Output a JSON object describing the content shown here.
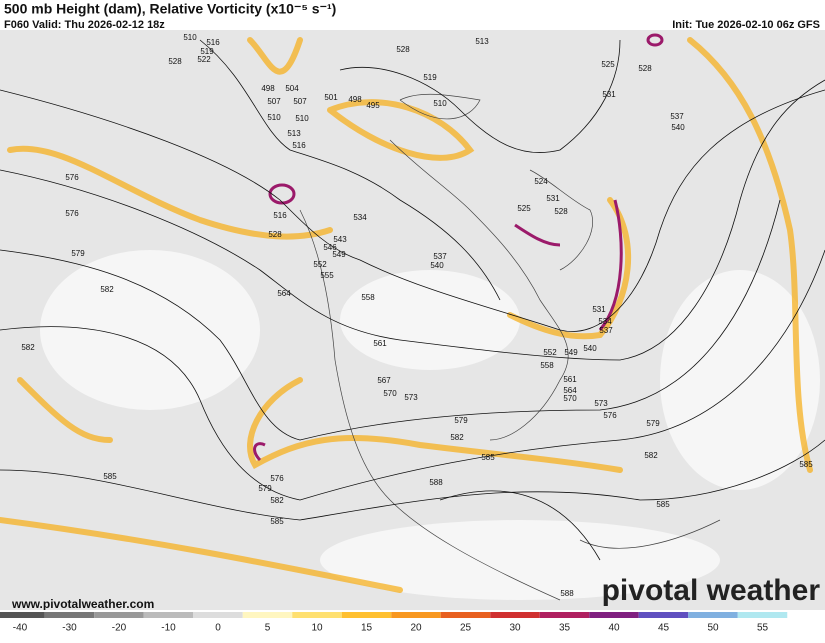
{
  "header": {
    "title": "500 mb Height (dam), Relative Vorticity (x10⁻⁵ s⁻¹)",
    "valid": "F060 Valid: Thu 2026-02-12 18z",
    "init": "Init: Tue 2026-02-10 06z GFS"
  },
  "footer": {
    "url": "www.pivotalweather.com",
    "brand": "pivotal weather"
  },
  "colorbar": {
    "labels": [
      -40,
      -30,
      -20,
      -10,
      0,
      5,
      10,
      15,
      20,
      25,
      30,
      35,
      40,
      45,
      50,
      55
    ]
  },
  "contour_labels": [
    "528",
    "576",
    "576",
    "579",
    "582",
    "582",
    "585",
    "585",
    "582",
    "579",
    "576",
    "564",
    "558",
    "561",
    "567",
    "570",
    "573",
    "579",
    "582",
    "585",
    "588",
    "588",
    "585",
    "579",
    "576",
    "573",
    "570",
    "552",
    "555",
    "549",
    "546",
    "543",
    "540",
    "537",
    "534",
    "528",
    "516",
    "516",
    "513",
    "510",
    "507",
    "504",
    "501",
    "498",
    "495",
    "528",
    "513",
    "519",
    "510",
    "525",
    "528",
    "531",
    "537",
    "540",
    "524",
    "531",
    "528",
    "525",
    "531",
    "534",
    "537",
    "540",
    "549",
    "552",
    "558",
    "561",
    "564",
    "585",
    "582",
    "519",
    "522",
    "510",
    "516",
    "498",
    "507",
    "510"
  ]
}
